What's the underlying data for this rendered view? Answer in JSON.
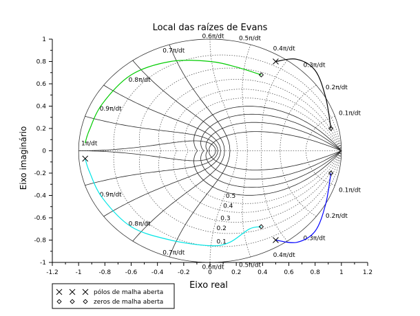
{
  "chart_data": {
    "type": "line",
    "title": "Local das raízes de Evans",
    "xlabel": "Eixo real",
    "ylabel": "Eixo imaginário",
    "xlim": [
      -1.2,
      1.2
    ],
    "ylim": [
      -1,
      1
    ],
    "x_ticks": [
      "-1.2",
      "-1",
      "-0.8",
      "-0.6",
      "-0.4",
      "-0.2",
      "0",
      "0.2",
      "0.4",
      "0.6",
      "0.8",
      "1",
      "1.2"
    ],
    "y_ticks": [
      "-1",
      "-0.8",
      "-0.6",
      "-0.4",
      "-0.2",
      "0",
      "0.2",
      "0.4",
      "0.6",
      "0.8",
      "1"
    ],
    "grid": "z-plane damping/natural-frequency grid (dotted)",
    "zeta_labels": [
      "0.1",
      "0.2",
      "0.3",
      "0.4",
      "0.5"
    ],
    "wn_labels": [
      "0.1π/dt",
      "0.2π/dt",
      "0.3π/dt",
      "0.4π/dt",
      "0.5π/dt",
      "0.6π/dt",
      "0.7π/dt",
      "0.8π/dt",
      "0.9π/dt",
      "1π/dt"
    ],
    "series": [
      {
        "color": "#000000",
        "points": [
          [
            0.5,
            0.8
          ],
          [
            0.66,
            0.82
          ],
          [
            0.8,
            0.72
          ],
          [
            0.88,
            0.48
          ],
          [
            0.92,
            0.2
          ]
        ]
      },
      {
        "color": "#0000ff",
        "points": [
          [
            0.5,
            -0.8
          ],
          [
            0.66,
            -0.82
          ],
          [
            0.8,
            -0.72
          ],
          [
            0.88,
            -0.48
          ],
          [
            0.92,
            -0.2
          ]
        ]
      },
      {
        "color": "#00cc00",
        "points": [
          [
            0.39,
            0.68
          ],
          [
            0.2,
            0.75
          ],
          [
            0,
            0.8
          ],
          [
            -0.3,
            0.8
          ],
          [
            -0.6,
            0.68
          ],
          [
            -0.82,
            0.42
          ],
          [
            -0.92,
            0.18
          ],
          [
            -0.95,
            0.07
          ]
        ]
      },
      {
        "color": "#00e5e5",
        "points": [
          [
            0.39,
            -0.68
          ],
          [
            0.3,
            -0.7
          ],
          [
            0.15,
            -0.82
          ],
          [
            0,
            -0.85
          ],
          [
            -0.3,
            -0.8
          ],
          [
            -0.6,
            -0.68
          ],
          [
            -0.82,
            -0.42
          ],
          [
            -0.92,
            -0.18
          ],
          [
            -0.95,
            -0.07
          ]
        ]
      }
    ],
    "poles": [
      [
        0.5,
        0.8
      ],
      [
        0.5,
        -0.8
      ],
      [
        -0.95,
        -0.07
      ]
    ],
    "zeros": [
      [
        0.39,
        0.68
      ],
      [
        0.39,
        -0.68
      ],
      [
        0.92,
        0.2
      ],
      [
        0.92,
        -0.2
      ]
    ],
    "legend": {
      "placement": "bottom-left",
      "entries": [
        {
          "symbol": "×",
          "label": "pólos de malha aberta"
        },
        {
          "symbol": "◇",
          "label": "zeros de malha aberta"
        }
      ]
    }
  }
}
